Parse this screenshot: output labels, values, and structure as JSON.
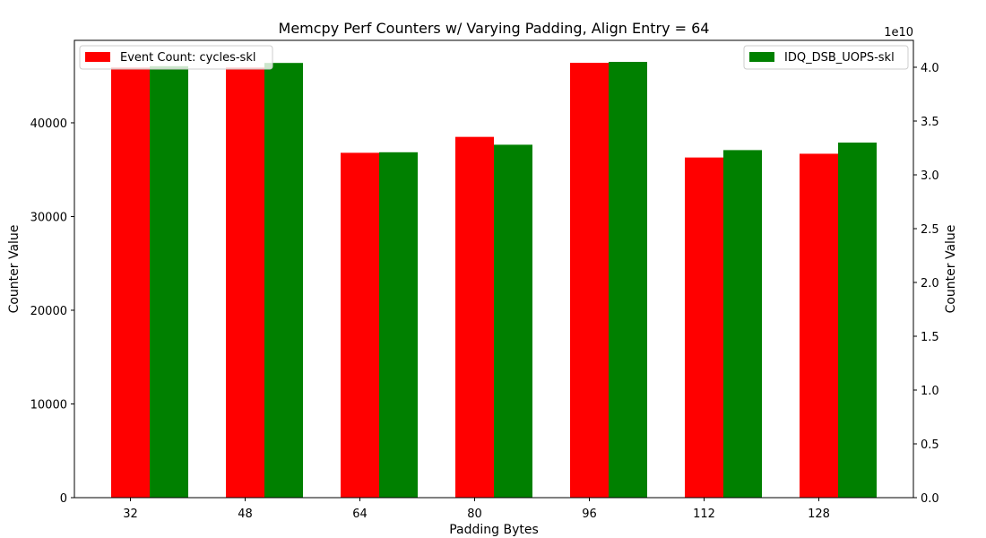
{
  "chart_data": {
    "type": "bar",
    "title": "Memcpy Perf Counters w/ Varying Padding, Align Entry = 64",
    "xlabel": "Padding Bytes",
    "ylabel_left": "Counter Value",
    "ylabel_right": "Counter Value",
    "right_axis_multiplier": "1e10",
    "categories": [
      "32",
      "48",
      "64",
      "80",
      "96",
      "112",
      "128"
    ],
    "series": [
      {
        "name": "Event Count: cycles-skl",
        "axis": "left",
        "color": "#ff0000",
        "values": [
          45900,
          45900,
          36800,
          38500,
          46400,
          36300,
          36700
        ]
      },
      {
        "name": "IDQ_DSB_UOPS-skl",
        "axis": "right",
        "color": "#008000",
        "values": [
          4.01,
          4.04,
          3.21,
          3.28,
          4.05,
          3.23,
          3.3
        ]
      }
    ],
    "ylim_left": [
      0,
      48800
    ],
    "ylim_right": [
      0,
      4.25
    ],
    "yticks_left": [
      "0",
      "10000",
      "20000",
      "30000",
      "40000"
    ],
    "yticks_left_values": [
      0,
      10000,
      20000,
      30000,
      40000
    ],
    "yticks_right": [
      "0.0",
      "0.5",
      "1.0",
      "1.5",
      "2.0",
      "2.5",
      "3.0",
      "3.5",
      "4.0"
    ],
    "yticks_right_values": [
      0,
      0.5,
      1.0,
      1.5,
      2.0,
      2.5,
      3.0,
      3.5,
      4.0
    ],
    "legend_left_placement": "top-left",
    "legend_right_placement": "top-right",
    "grid": false
  }
}
